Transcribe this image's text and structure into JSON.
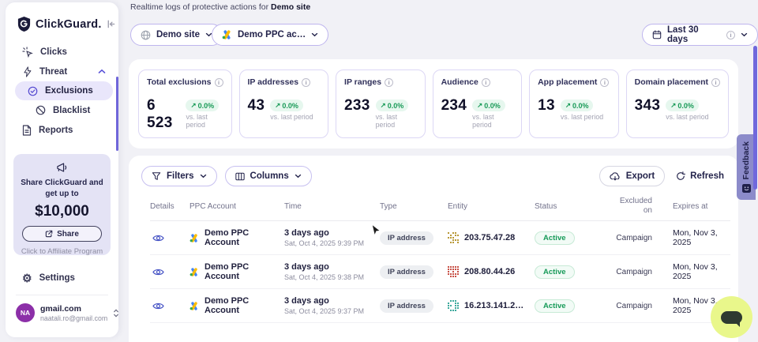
{
  "brand": {
    "name": "ClickGuard."
  },
  "sidebar": {
    "nav": [
      {
        "label": "Clicks"
      },
      {
        "label": "Threat"
      },
      {
        "label": "Exclusions"
      },
      {
        "label": "Blacklist"
      },
      {
        "label": "Reports"
      }
    ],
    "promo": {
      "line1": "Share ClickGuard and",
      "line2": "get up to",
      "amount": "$10,000",
      "button": "Share",
      "footer": "Click to Affiliate Program"
    },
    "settings": "Settings",
    "account": {
      "initials": "NA",
      "name": "gmail.com",
      "email": "naatali.ro@gmail.com"
    }
  },
  "header": {
    "subtitle": "Realtime logs of protective actions for ",
    "subtitle_target": "Demo site",
    "site_selector": "Demo site",
    "ppc_selector": "Demo PPC ac…",
    "date_range": "Last 30 days"
  },
  "stats": [
    {
      "label": "Total exclusions",
      "value": "6 523",
      "delta": "0.0%",
      "compare": "vs. last period"
    },
    {
      "label": "IP addresses",
      "value": "43",
      "delta": "0.0%",
      "compare": "vs. last period"
    },
    {
      "label": "IP ranges",
      "value": "233",
      "delta": "0.0%",
      "compare": "vs. last period"
    },
    {
      "label": "Audience",
      "value": "234",
      "delta": "0.0%",
      "compare": "vs. last period"
    },
    {
      "label": "App placement",
      "value": "13",
      "delta": "0.0%",
      "compare": "vs. last period"
    },
    {
      "label": "Domain placement",
      "value": "343",
      "delta": "0.0%",
      "compare": "vs. last period"
    }
  ],
  "toolbar": {
    "filters": "Filters",
    "columns": "Columns",
    "export": "Export",
    "refresh": "Refresh"
  },
  "table": {
    "headers": {
      "details": "Details",
      "account": "PPC Account",
      "time": "Time",
      "type": "Type",
      "entity": "Entity",
      "status": "Status",
      "excluded_line1": "Excluded",
      "excluded_line2": "on",
      "expires": "Expires at"
    },
    "rows": [
      {
        "account": "Demo PPC Account",
        "time_rel": "3 days ago",
        "time_abs": "Sat, Oct 4, 2025 9:39 PM",
        "type": "IP address",
        "entity": "203.75.47.28",
        "icon": {
          "color": "#b3912a",
          "pattern": [
            "10110",
            "01011",
            "11100",
            "00111",
            "01101"
          ]
        },
        "status": "Active",
        "excluded_on": "Campaign",
        "expires": "Mon, Nov 3, 2025"
      },
      {
        "account": "Demo PPC Account",
        "time_rel": "3 days ago",
        "time_abs": "Sat, Oct 4, 2025 9:38 PM",
        "type": "IP address",
        "entity": "208.80.44.26",
        "icon": {
          "color": "#c4453a",
          "pattern": [
            "11111",
            "11111",
            "10101",
            "11111",
            "01110"
          ]
        },
        "status": "Active",
        "excluded_on": "Campaign",
        "expires": "Mon, Nov 3, 2025"
      },
      {
        "account": "Demo PPC Account",
        "time_rel": "3 days ago",
        "time_abs": "Sat, Oct 4, 2025 9:37 PM",
        "type": "IP address",
        "entity": "16.213.141.2…",
        "icon": {
          "color": "#2fa396",
          "pattern": [
            "01110",
            "10011",
            "11011",
            "10011",
            "01110"
          ]
        },
        "status": "Active",
        "excluded_on": "Campaign",
        "expires": "Mon, Nov 3, 2025"
      }
    ]
  },
  "feedback": "Feedback",
  "colors": {
    "accent": "#5f55d6",
    "positive": "#189a57",
    "promo_bg": "#e4e3f5",
    "chat_bg": "#e9f78b"
  }
}
